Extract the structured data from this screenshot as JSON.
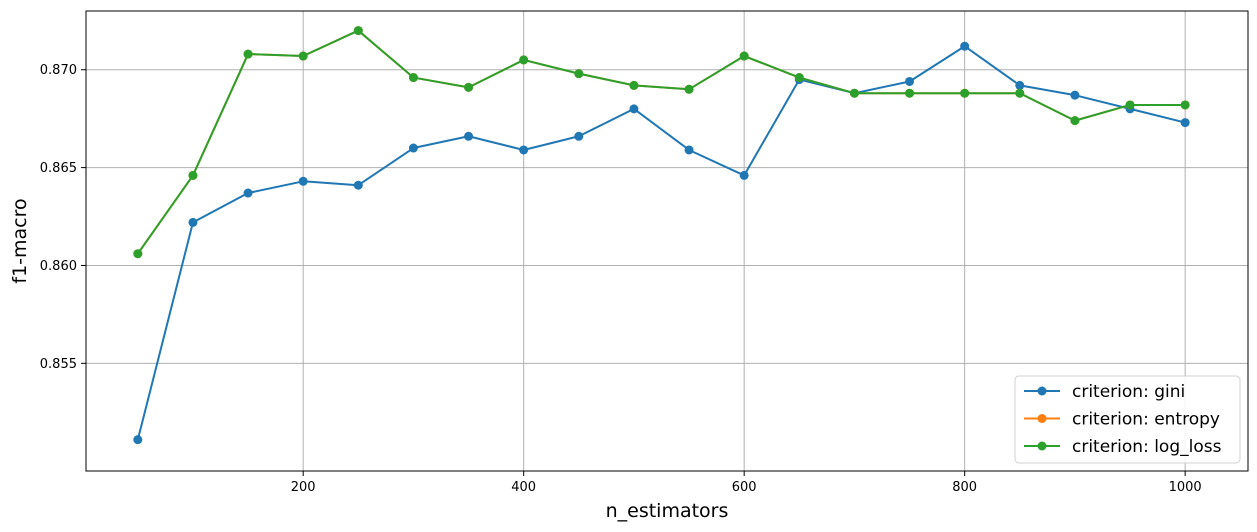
{
  "chart_data": {
    "type": "line",
    "xlabel": "n_estimators",
    "ylabel": "f1-macro",
    "x": [
      50,
      100,
      150,
      200,
      250,
      300,
      350,
      400,
      450,
      500,
      550,
      600,
      650,
      700,
      750,
      800,
      850,
      900,
      950,
      1000
    ],
    "xlim": [
      3,
      1057
    ],
    "ylim": [
      0.8495,
      0.873
    ],
    "xticks": [
      200,
      400,
      600,
      800,
      1000
    ],
    "yticks": [
      0.855,
      0.86,
      0.865,
      0.87
    ],
    "xtick_labels": [
      "200",
      "400",
      "600",
      "800",
      "1000"
    ],
    "ytick_labels": [
      "0.855",
      "0.860",
      "0.865",
      "0.870"
    ],
    "grid": true,
    "legend_position": "bottom-right",
    "series": [
      {
        "name": "criterion: gini",
        "color": "#1f77b4",
        "values": [
          0.8511,
          0.8622,
          0.8637,
          0.8643,
          0.8641,
          0.866,
          0.8666,
          0.8659,
          0.8666,
          0.868,
          0.8659,
          0.8646,
          0.8695,
          0.8688,
          0.8694,
          0.8712,
          0.8692,
          0.8687,
          0.868,
          0.8673
        ]
      },
      {
        "name": "criterion: entropy",
        "color": "#ff7f0e",
        "values": [
          0.8606,
          0.8646,
          0.8708,
          0.8707,
          0.872,
          0.8696,
          0.8691,
          0.8705,
          0.8698,
          0.8692,
          0.869,
          0.8707,
          0.8696,
          0.8688,
          0.8688,
          0.8688,
          0.8688,
          0.8674,
          0.8682,
          0.8682
        ]
      },
      {
        "name": "criterion: log_loss",
        "color": "#2ca02c",
        "values": [
          0.8606,
          0.8646,
          0.8708,
          0.8707,
          0.872,
          0.8696,
          0.8691,
          0.8705,
          0.8698,
          0.8692,
          0.869,
          0.8707,
          0.8696,
          0.8688,
          0.8688,
          0.8688,
          0.8688,
          0.8674,
          0.8682,
          0.8682
        ]
      }
    ]
  }
}
